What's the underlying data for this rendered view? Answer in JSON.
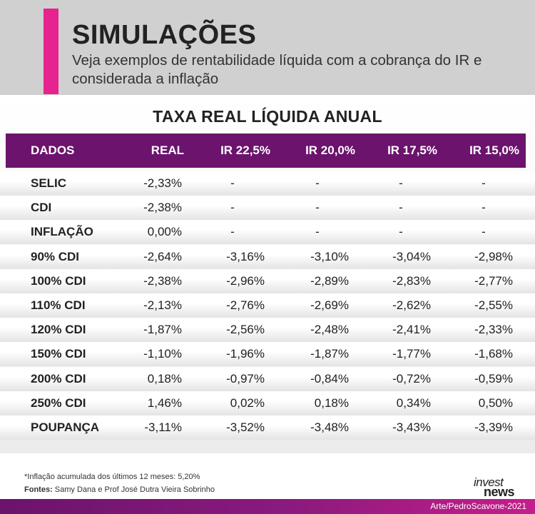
{
  "header": {
    "title": "SIMULAÇÕES",
    "subtitle": "Veja exemplos de rentabilidade líquida com a cobrança do IR e considerada a inflação",
    "accent_color": "#e6238f"
  },
  "table": {
    "title": "TAXA REAL LÍQUIDA ANUAL",
    "header_color": "#6b136d",
    "columns": [
      "DADOS",
      "REAL",
      "IR 22,5%",
      "IR 20,0%",
      "IR 17,5%",
      "IR 15,0%"
    ],
    "rows": [
      [
        "SELIC",
        "-2,33%",
        "-",
        "-",
        "-",
        "-"
      ],
      [
        "CDI",
        "-2,38%",
        "-",
        "-",
        "-",
        "-"
      ],
      [
        "INFLAÇÃO",
        "0,00%",
        "-",
        "-",
        "-",
        "-"
      ],
      [
        "90% CDI",
        "-2,64%",
        "-3,16%",
        "-3,10%",
        "-3,04%",
        "-2,98%"
      ],
      [
        "100% CDI",
        "-2,38%",
        "-2,96%",
        "-2,89%",
        "-2,83%",
        "-2,77%"
      ],
      [
        "110% CDI",
        "-2,13%",
        "-2,76%",
        "-2,69%",
        "-2,62%",
        "-2,55%"
      ],
      [
        "120% CDI",
        "-1,87%",
        "-2,56%",
        "-2,48%",
        "-2,41%",
        "-2,33%"
      ],
      [
        "150% CDI",
        "-1,10%",
        "-1,96%",
        "-1,87%",
        "-1,77%",
        "-1,68%"
      ],
      [
        "200% CDI",
        "0,18%",
        "-0,97%",
        "-0,84%",
        "-0,72%",
        "-0,59%"
      ],
      [
        "250% CDI",
        "1,46%",
        "0,02%",
        "0,18%",
        "0,34%",
        "0,50%"
      ],
      [
        "POUPANÇA",
        "-3,11%",
        "-3,52%",
        "-3,48%",
        "-3,43%",
        "-3,39%"
      ]
    ]
  },
  "footer": {
    "note": "*Inflação acumulada dos últimos 12 meses: 5,20%",
    "source_label": "Fontes:",
    "source_text": " Samy Dana e Prof José Dutra Vieira Sobrinho",
    "logo_line1": "invest",
    "logo_line2": "news",
    "credit": "Arte/PedroScavone-2021"
  }
}
